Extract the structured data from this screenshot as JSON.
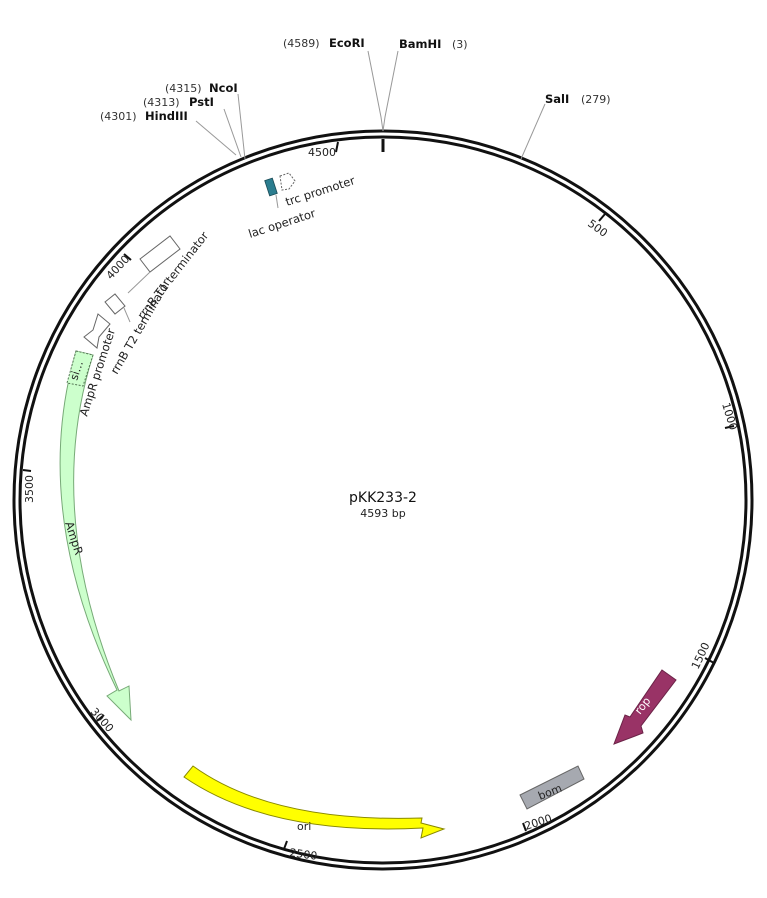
{
  "plasmid": {
    "name": "pKK233-2",
    "length_label": "4593 bp",
    "length": 4593
  },
  "sites": [
    {
      "id": "ecori",
      "name": "EcoRI",
      "pos_label": "(4589)",
      "pos": 4589
    },
    {
      "id": "bamhi",
      "name": "BamHI",
      "pos_label": "(3)",
      "pos": 3
    },
    {
      "id": "sali",
      "name": "SalI",
      "pos_label": "(279)",
      "pos": 279
    },
    {
      "id": "ncoi",
      "name": "NcoI",
      "pos_label": "(4315)",
      "pos": 4315
    },
    {
      "id": "psti",
      "name": "PstI",
      "pos_label": "(4313)",
      "pos": 4313
    },
    {
      "id": "hindiii",
      "name": "HindIII",
      "pos_label": "(4301)",
      "pos": 4301
    }
  ],
  "ticks": [
    "4500",
    "500",
    "1000",
    "1500",
    "2000",
    "2500",
    "3000",
    "3500",
    "4000"
  ],
  "features": {
    "trc_promoter": "trc promoter",
    "lac_operator": "lac operator",
    "rrnb_t1": "rrnB T1 terminator",
    "rrnb_t2": "rrnB T2 terminator",
    "ampr_promoter": "AmpR promoter",
    "ampr": "AmpR",
    "signal": "si…",
    "ori": "ori",
    "rop": "rop",
    "bom": "bom"
  },
  "colors": {
    "ampr": "#ccffcc",
    "ori": "#ffff00",
    "rop": "#993366",
    "bom": "#a6a9b0",
    "lac_operator": "#2b7d8f",
    "backbone": "#111111"
  }
}
